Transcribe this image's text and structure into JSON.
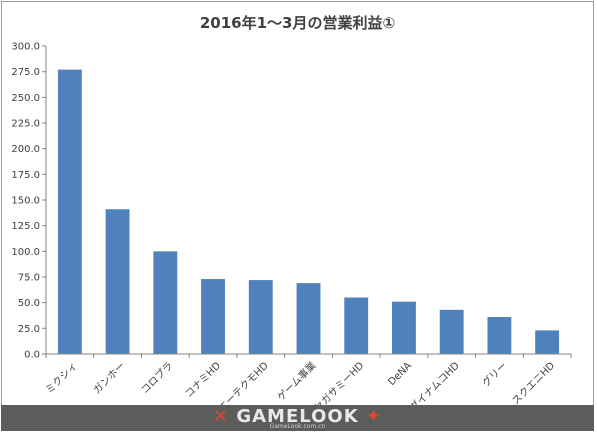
{
  "chart_data": {
    "type": "bar",
    "title": "2016年1～3月の営業利益①",
    "xlabel": "",
    "ylabel": "",
    "ylim": [
      0,
      300
    ],
    "yticks": [
      "0.0",
      "25.0",
      "50.0",
      "75.0",
      "100.0",
      "125.0",
      "150.0",
      "175.0",
      "200.0",
      "225.0",
      "250.0",
      "275.0",
      "300.0"
    ],
    "categories": [
      "ミクシィ",
      "ガンホー",
      "コロプラ",
      "コナミHD",
      "コーエーテクモHD",
      "ゲーム事業",
      "セガサミーHD",
      "DeNA",
      "バンダイナムコHD",
      "グリー",
      "スクエニHD"
    ],
    "values": [
      277,
      141,
      100,
      73,
      72,
      69,
      55,
      51,
      43,
      36,
      23
    ],
    "grid": false,
    "legend": "none",
    "bar_color": "#4f81bd"
  },
  "watermark": {
    "logo_left": "✕",
    "logo": "GAMELOOK",
    "logo_right": "✦",
    "url": "GameLook.com.cn"
  }
}
